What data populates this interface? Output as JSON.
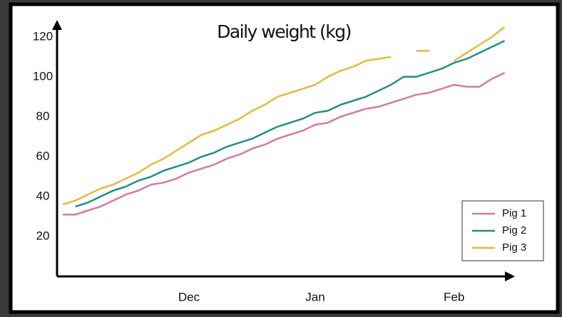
{
  "chart_data": {
    "type": "line",
    "title": "Daily weight (kg)",
    "categories": [
      null,
      null,
      null,
      null,
      null,
      null,
      null,
      null,
      null,
      null,
      "Dec",
      null,
      null,
      null,
      null,
      null,
      null,
      null,
      null,
      null,
      "Jan",
      null,
      null,
      null,
      null,
      null,
      null,
      null,
      null,
      null,
      null,
      "Feb",
      null,
      null,
      null,
      null
    ],
    "series": [
      {
        "name": "Pig 1",
        "color": "#d47b9c",
        "values": [
          31,
          31,
          33,
          35,
          38,
          41,
          43,
          46,
          47,
          49,
          52,
          54,
          56,
          59,
          61,
          64,
          66,
          69,
          71,
          73,
          76,
          77,
          80,
          82,
          84,
          85,
          87,
          89,
          91,
          92,
          94,
          96,
          95,
          95,
          99,
          102
        ]
      },
      {
        "name": "Pig 2",
        "color": "#1f8f8a",
        "values": [
          null,
          35,
          37,
          40,
          43,
          45,
          48,
          50,
          53,
          55,
          57,
          60,
          62,
          65,
          67,
          69,
          72,
          75,
          77,
          79,
          82,
          83,
          86,
          88,
          90,
          93,
          96,
          100,
          100,
          102,
          104,
          107,
          109,
          112,
          115,
          118
        ]
      },
      {
        "name": "Pig 3",
        "color": "#e8b83a",
        "values": [
          36,
          38,
          41,
          44,
          46,
          49,
          52,
          56,
          59,
          63,
          67,
          71,
          73,
          76,
          79,
          83,
          86,
          90,
          92,
          94,
          96,
          100,
          103,
          105,
          108,
          109,
          110,
          null,
          113,
          113,
          null,
          108,
          112,
          116,
          120,
          125
        ]
      }
    ],
    "ylim": [
      0,
      126
    ],
    "yticks": [
      20,
      40,
      60,
      80,
      100,
      120
    ],
    "grid": false,
    "legend": "bottom-right"
  }
}
